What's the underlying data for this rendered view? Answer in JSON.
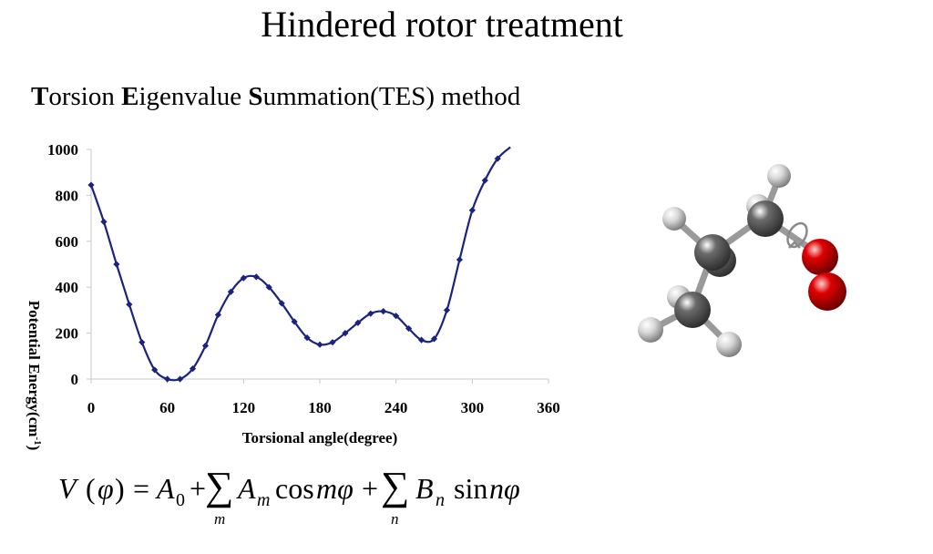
{
  "slide": {
    "title": "Hindered rotor treatment",
    "subtitle_parts": [
      "T",
      "orsion ",
      "E",
      "igenvalue ",
      "S",
      "ummation(TES) method"
    ]
  },
  "chart_data": {
    "type": "line",
    "xlabel": "Torsional angle(degree)",
    "ylabel": "Potential Energy(cm",
    "ylabel_sup": "-1",
    "ylabel_tail": ")",
    "xlim": [
      0,
      360
    ],
    "ylim": [
      0,
      1000
    ],
    "x_ticks": [
      "0",
      "60",
      "120",
      "180",
      "240",
      "300",
      "360"
    ],
    "y_ticks": [
      "0",
      "200",
      "400",
      "600",
      "800",
      "1000"
    ],
    "grid": false,
    "legend": "none",
    "series": [
      {
        "color": "#1a237e",
        "marker": "diamond",
        "x": [
          0,
          10,
          20,
          30,
          40,
          50,
          60,
          70,
          80,
          90,
          100,
          110,
          120,
          130,
          140,
          150,
          160,
          170,
          180,
          190,
          200,
          210,
          220,
          230,
          240,
          250,
          260,
          270,
          280,
          290,
          300,
          310,
          320,
          330
        ],
        "y": [
          845,
          685,
          500,
          325,
          160,
          40,
          0,
          0,
          45,
          145,
          280,
          380,
          440,
          445,
          400,
          330,
          250,
          180,
          150,
          160,
          200,
          245,
          285,
          295,
          275,
          220,
          170,
          175,
          300,
          520,
          735,
          865,
          960,
          1010
        ]
      }
    ]
  },
  "molecule": {
    "carbon_color": "#6b6b6b",
    "oxygen_color": "#e00000",
    "hydrogen_color": "#d8d8d8",
    "rotation_marker": "torsion-rotation-arrow"
  },
  "formula": {
    "lhs": "V",
    "lparen": "(",
    "phi1": "φ",
    "rparen": ")",
    "eq": "=",
    "A": "A",
    "sub0": "0",
    "plus1": "+",
    "sum1": "∑",
    "sum1_index": "m",
    "A2": "A",
    "sub_m": "m",
    "cos": "cos",
    "cos_arg": "mφ",
    "plus2": "+",
    "sum2": "∑",
    "sum2_index": "n",
    "B": "B",
    "sub_n": "n",
    "sin": "sin",
    "sin_arg": "nφ"
  }
}
